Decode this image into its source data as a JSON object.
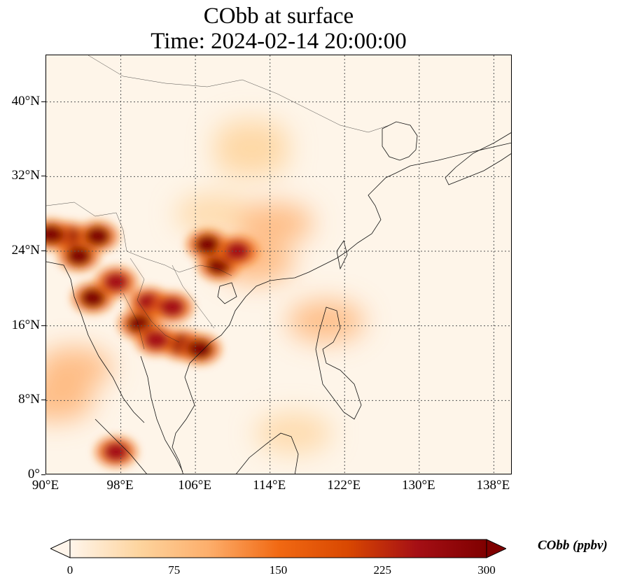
{
  "title": {
    "line1": "CObb at surface",
    "line2": "Time: 2024-02-14 20:00:00"
  },
  "map": {
    "extent": {
      "lon_min": 90,
      "lon_max": 140,
      "lat_min": 0,
      "lat_max": 45
    },
    "lat_ticks": [
      {
        "value": 0,
        "label": "0°"
      },
      {
        "value": 8,
        "label": "8°N"
      },
      {
        "value": 16,
        "label": "16°N"
      },
      {
        "value": 24,
        "label": "24°N"
      },
      {
        "value": 32,
        "label": "32°N"
      },
      {
        "value": 40,
        "label": "40°N"
      }
    ],
    "lon_ticks": [
      {
        "value": 90,
        "label": "90°E"
      },
      {
        "value": 98,
        "label": "98°E"
      },
      {
        "value": 106,
        "label": "106°E"
      },
      {
        "value": 114,
        "label": "114°E"
      },
      {
        "value": 122,
        "label": "122°E"
      },
      {
        "value": 130,
        "label": "130°E"
      },
      {
        "value": 138,
        "label": "138°E"
      }
    ],
    "gridlines": true,
    "field_hotspots": [
      {
        "lon": 92.5,
        "lat": 25.5,
        "value": 300
      },
      {
        "lon": 95.5,
        "lat": 25.6,
        "value": 300
      },
      {
        "lon": 93.5,
        "lat": 23.5,
        "value": 280
      },
      {
        "lon": 90.5,
        "lat": 25.8,
        "value": 280
      },
      {
        "lon": 95.0,
        "lat": 19.0,
        "value": 300
      },
      {
        "lon": 97.5,
        "lat": 20.7,
        "value": 260
      },
      {
        "lon": 101.0,
        "lat": 18.5,
        "value": 270
      },
      {
        "lon": 103.5,
        "lat": 18.0,
        "value": 260
      },
      {
        "lon": 100.0,
        "lat": 16.2,
        "value": 280
      },
      {
        "lon": 104.5,
        "lat": 14.0,
        "value": 300
      },
      {
        "lon": 106.5,
        "lat": 13.5,
        "value": 300
      },
      {
        "lon": 108.5,
        "lat": 22.5,
        "value": 300
      },
      {
        "lon": 107.3,
        "lat": 24.7,
        "value": 280
      },
      {
        "lon": 110.5,
        "lat": 24.0,
        "value": 260
      },
      {
        "lon": 101.8,
        "lat": 14.5,
        "value": 260
      },
      {
        "lon": 97.5,
        "lat": 2.5,
        "value": 250
      }
    ],
    "field_plumes": [
      {
        "lon": 108.0,
        "lat": 28.0,
        "value": 60
      },
      {
        "lon": 112.0,
        "lat": 34.0,
        "value": 45
      },
      {
        "lon": 114.5,
        "lat": 27.0,
        "value": 110
      },
      {
        "lon": 112.5,
        "lat": 22.8,
        "value": 120
      },
      {
        "lon": 91.0,
        "lat": 8.0,
        "value": 120
      },
      {
        "lon": 93.0,
        "lat": 11.5,
        "value": 90
      },
      {
        "lon": 120.0,
        "lat": 16.5,
        "value": 80
      },
      {
        "lon": 112.0,
        "lat": 36.0,
        "value": 50
      },
      {
        "lon": 116.5,
        "lat": 4.5,
        "value": 70
      }
    ]
  },
  "colorbar": {
    "label": "CObb (ppbv)",
    "min": 0,
    "max": 300,
    "ticks": [
      {
        "value": 0,
        "label": "0"
      },
      {
        "value": 75,
        "label": "75"
      },
      {
        "value": 150,
        "label": "150"
      },
      {
        "value": 225,
        "label": "225"
      },
      {
        "value": 300,
        "label": "300"
      }
    ],
    "colors": [
      "#fff5eb",
      "#fdd49e",
      "#fdae6b",
      "#f16913",
      "#d94801",
      "#a50f15",
      "#7f0000"
    ],
    "extend": "both"
  }
}
